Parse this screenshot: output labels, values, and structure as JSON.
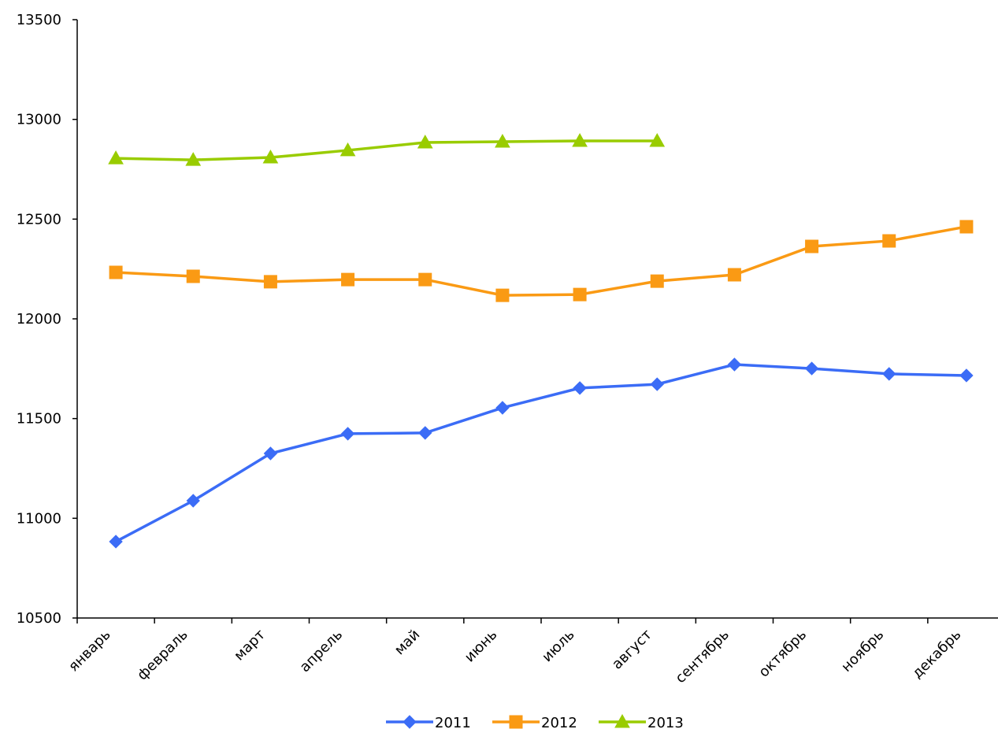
{
  "chart_data": {
    "type": "line",
    "categories": [
      "январь",
      "февраль",
      "март",
      "апрель",
      "май",
      "июнь",
      "июль",
      "август",
      "сентябрь",
      "октябрь",
      "ноябрь",
      "декабрь"
    ],
    "series": [
      {
        "name": "2011",
        "color": "#3b6cf6",
        "marker": "diamond",
        "values": [
          10883,
          11088,
          11325,
          11424,
          11428,
          11554,
          11653,
          11672,
          11771,
          11751,
          11724,
          11716
        ]
      },
      {
        "name": "2012",
        "color": "#fa9a14",
        "marker": "square",
        "values": [
          12233,
          12213,
          12186,
          12197,
          12197,
          12118,
          12122,
          12189,
          12221,
          12363,
          12391,
          12462
        ]
      },
      {
        "name": "2013",
        "color": "#99cc00",
        "marker": "triangle",
        "values": [
          12805,
          12797,
          12809,
          12845,
          12884,
          12888,
          12892,
          12892,
          null,
          null,
          null,
          null
        ]
      }
    ],
    "ylim": [
      10500,
      13500
    ],
    "yticks": [
      10500,
      11000,
      11500,
      12000,
      12500,
      13000,
      13500
    ],
    "grid": false,
    "legend": "bottom"
  }
}
